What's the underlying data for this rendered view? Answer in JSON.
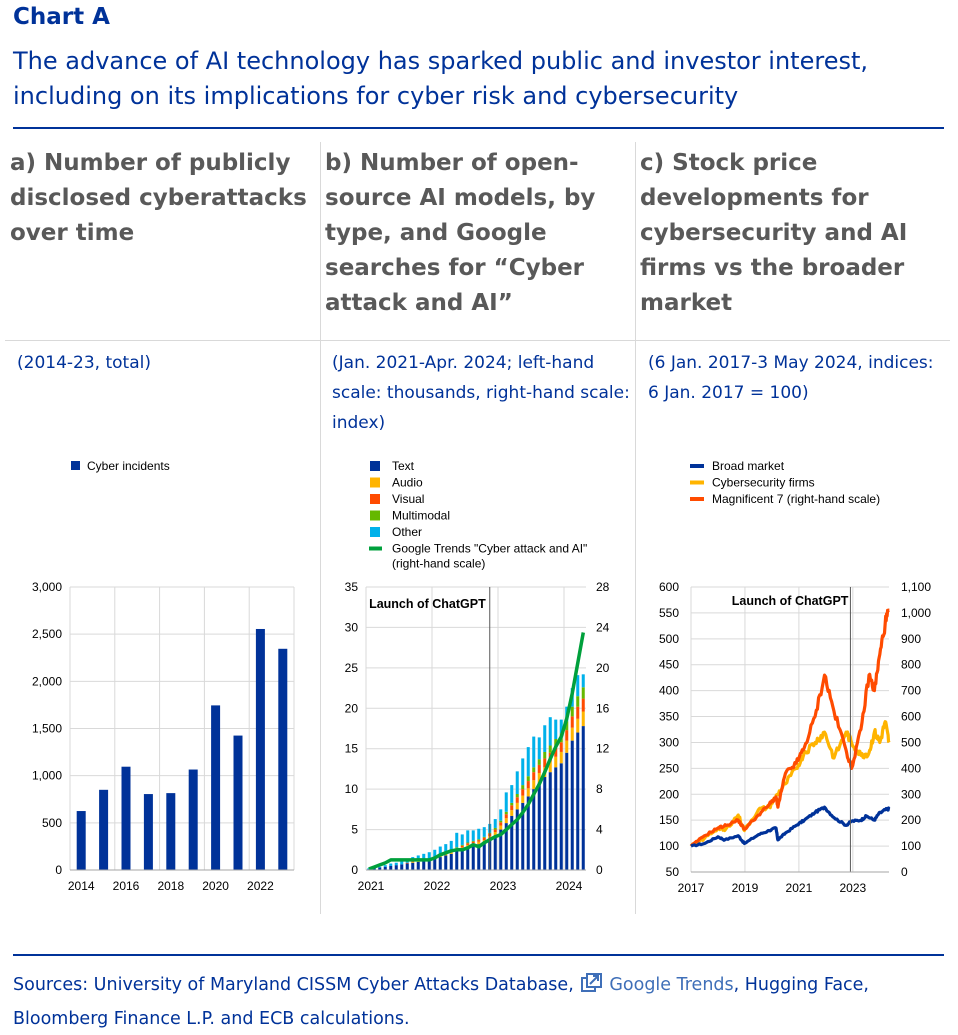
{
  "header": {
    "chart_label": "Chart A",
    "title": "The advance of AI technology has sparked public and investor interest, including on its implications for cyber risk and cybersecurity"
  },
  "panels": [
    {
      "title": "a) Number of publicly disclosed cyberattacks over time",
      "subtitle": "(2014-23, total)"
    },
    {
      "title": "b) Number of open-source AI models, by type, and Google searches for “Cyber attack and AI”",
      "subtitle": "(Jan. 2021-Apr. 2024; left-hand scale: thousands, right-hand scale: index)"
    },
    {
      "title": "c) Stock price developments for cybersecurity and AI firms vs the broader market",
      "subtitle": "(6 Jan. 2017-3 May 2024, indices: 6 Jan. 2017 = 100)"
    }
  ],
  "footer": {
    "sources_prefix": "Sources: University of Maryland CISSM Cyber Attacks Database,",
    "sources_link": "Google Trends",
    "sources_suffix": ", Hugging Face, Bloomberg Finance L.P. and ECB calculations.",
    "link_icon": "external-link-icon"
  },
  "chart_data": [
    {
      "type": "bar",
      "categories": [
        "2014",
        "2015",
        "2016",
        "2017",
        "2018",
        "2019",
        "2020",
        "2021",
        "2022",
        "2023"
      ],
      "x_tick_labels": [
        "2014",
        "2016",
        "2018",
        "2020",
        "2022"
      ],
      "series": [
        {
          "name": "Cyber incidents",
          "values": [
            625,
            850,
            1095,
            805,
            815,
            1065,
            1745,
            1425,
            2555,
            2345
          ],
          "color": "#003299"
        }
      ],
      "y_ticks": [
        "0",
        "500",
        "1,000",
        "1,500",
        "2,000",
        "2,500",
        "3,000"
      ],
      "ylim": [
        0,
        3000
      ],
      "grid": true,
      "legend_position": "top-left"
    },
    {
      "type": "bar",
      "stacked": true,
      "months": 40,
      "x_start": "2021-01",
      "x_tick_labels": [
        "2021",
        "2022",
        "2023",
        "2024"
      ],
      "left_ylim": [
        0,
        35
      ],
      "left_y_ticks": [
        "0",
        "5",
        "10",
        "15",
        "20",
        "25",
        "30",
        "35"
      ],
      "right_ylim": [
        0,
        28
      ],
      "right_y_ticks": [
        "0",
        "4",
        "8",
        "12",
        "16",
        "20",
        "24",
        "28"
      ],
      "annotation": "Launch of ChatGPT",
      "annotation_x": "2022-11",
      "legend_position": "top-left",
      "series": [
        {
          "name": "Text",
          "color": "#003299",
          "values": [
            0.1,
            0.2,
            0.3,
            0.4,
            0.5,
            0.6,
            0.7,
            0.8,
            0.9,
            1.0,
            1.1,
            1.2,
            1.4,
            1.6,
            1.8,
            2.0,
            2.3,
            2.5,
            2.8,
            3.0,
            3.2,
            3.4,
            3.8,
            4.3,
            5.0,
            5.8,
            6.7,
            7.5,
            8.3,
            9.1,
            10.0,
            10.8,
            11.5,
            12.1,
            12.7,
            13.2,
            14.5,
            16.0,
            17.0,
            17.8
          ]
        },
        {
          "name": "Audio",
          "color": "#ffb400",
          "values": [
            0,
            0,
            0,
            0,
            0,
            0,
            0,
            0,
            0.1,
            0.1,
            0.1,
            0.1,
            0.1,
            0.2,
            0.2,
            0.2,
            0.2,
            0.3,
            0.3,
            0.3,
            0.3,
            0.3,
            0.4,
            0.4,
            0.5,
            0.6,
            0.7,
            0.8,
            0.9,
            1.0,
            1.1,
            1.2,
            1.2,
            1.3,
            1.3,
            1.4,
            1.5,
            1.6,
            1.7,
            1.8
          ]
        },
        {
          "name": "Visual",
          "color": "#ff4b00",
          "values": [
            0,
            0,
            0,
            0,
            0,
            0,
            0,
            0.1,
            0.1,
            0.1,
            0.1,
            0.1,
            0.1,
            0.1,
            0.1,
            0.2,
            0.2,
            0.2,
            0.2,
            0.2,
            0.2,
            0.3,
            0.3,
            0.3,
            0.4,
            0.5,
            0.6,
            0.7,
            0.8,
            0.9,
            1.0,
            1.0,
            1.1,
            1.1,
            1.2,
            1.2,
            1.3,
            1.4,
            1.5,
            1.6
          ]
        },
        {
          "name": "Multimodal",
          "color": "#65b800",
          "values": [
            0,
            0,
            0,
            0,
            0,
            0,
            0,
            0,
            0,
            0,
            0,
            0,
            0,
            0,
            0,
            0,
            0.1,
            0.1,
            0.1,
            0.1,
            0.1,
            0.1,
            0.1,
            0.2,
            0.2,
            0.3,
            0.3,
            0.4,
            0.5,
            0.6,
            0.6,
            0.7,
            0.8,
            0.9,
            1.0,
            1.1,
            1.1,
            1.2,
            1.3,
            1.4
          ]
        },
        {
          "name": "Other",
          "color": "#00b1ea",
          "values": [
            0.1,
            0.1,
            0.1,
            0.2,
            0.3,
            0.3,
            0.4,
            0.5,
            0.5,
            0.6,
            0.7,
            0.8,
            0.9,
            1.0,
            1.1,
            1.2,
            1.8,
            1.3,
            1.5,
            1.3,
            1.3,
            1.2,
            1.1,
            1.1,
            1.4,
            2.4,
            2.2,
            2.8,
            3.3,
            3.6,
            3.8,
            2.7,
            3.3,
            3.5,
            2.4,
            1.7,
            1.8,
            2.3,
            2.6,
            1.6
          ]
        },
        {
          "name": "Google Trends \"Cyber attack and AI\" (right-hand scale)",
          "color": "#00a03c",
          "axis": "right",
          "values": [
            0.1,
            0.3,
            0.5,
            0.7,
            1.0,
            1.0,
            1.0,
            1.0,
            1.0,
            1.0,
            1.0,
            1.0,
            1.2,
            1.5,
            1.7,
            1.9,
            2.0,
            2.0,
            2.2,
            2.5,
            2.3,
            2.7,
            3.0,
            3.3,
            3.5,
            4.0,
            4.5,
            5.0,
            5.7,
            6.5,
            7.5,
            8.5,
            9.7,
            11.0,
            12.2,
            13.2,
            15.0,
            17.5,
            20.5,
            23.5
          ]
        }
      ]
    },
    {
      "type": "line",
      "x_start": 2017.0,
      "x_end": 2024.34,
      "x_tick_labels": [
        "2017",
        "2019",
        "2021",
        "2023"
      ],
      "x_ticks": [
        2017,
        2019,
        2021,
        2023
      ],
      "left_ylim": [
        50,
        600
      ],
      "left_y_ticks": [
        "50",
        "100",
        "150",
        "200",
        "250",
        "300",
        "350",
        "400",
        "450",
        "500",
        "550",
        "600"
      ],
      "right_ylim": [
        0,
        1100
      ],
      "right_y_ticks": [
        "0",
        "100",
        "200",
        "300",
        "400",
        "500",
        "600",
        "700",
        "800",
        "900",
        "1,000",
        "1,100"
      ],
      "annotation": "Launch of ChatGPT",
      "annotation_x": 2022.91,
      "legend_position": "top-left",
      "series": [
        {
          "name": "Broad market",
          "color": "#003299",
          "axis": "left",
          "x": [
            2017.0,
            2017.5,
            2018.0,
            2018.25,
            2018.75,
            2018.98,
            2019.5,
            2019.9,
            2020.15,
            2020.22,
            2020.5,
            2020.9,
            2021.2,
            2021.6,
            2021.95,
            2022.3,
            2022.75,
            2022.95,
            2023.3,
            2023.5,
            2023.8,
            2023.95,
            2024.2,
            2024.34
          ],
          "y": [
            100,
            105,
            118,
            112,
            120,
            105,
            122,
            130,
            135,
            112,
            125,
            140,
            150,
            165,
            175,
            155,
            140,
            148,
            150,
            158,
            150,
            162,
            170,
            172
          ]
        },
        {
          "name": "Cybersecurity firms",
          "color": "#ffb400",
          "axis": "left",
          "x": [
            2017.0,
            2017.5,
            2018.0,
            2018.25,
            2018.75,
            2018.98,
            2019.5,
            2019.9,
            2020.2,
            2020.5,
            2020.9,
            2021.2,
            2021.6,
            2021.95,
            2022.3,
            2022.75,
            2022.95,
            2023.3,
            2023.6,
            2023.8,
            2024.0,
            2024.2,
            2024.34
          ],
          "y": [
            100,
            115,
            135,
            130,
            160,
            130,
            170,
            175,
            200,
            220,
            250,
            280,
            300,
            320,
            270,
            320,
            300,
            275,
            280,
            320,
            300,
            340,
            300
          ]
        },
        {
          "name": "Magnificent 7 (right-hand scale)",
          "color": "#ff4b00",
          "axis": "right",
          "x": [
            2017.0,
            2017.5,
            2018.0,
            2018.3,
            2018.75,
            2018.98,
            2019.5,
            2019.9,
            2020.15,
            2020.22,
            2020.5,
            2020.9,
            2021.2,
            2021.6,
            2021.95,
            2022.3,
            2022.75,
            2022.95,
            2023.3,
            2023.6,
            2023.8,
            2024.0,
            2024.2,
            2024.34
          ],
          "y": [
            100,
            140,
            170,
            180,
            200,
            165,
            220,
            260,
            290,
            250,
            380,
            420,
            480,
            600,
            760,
            620,
            470,
            400,
            550,
            760,
            700,
            840,
            960,
            1010
          ]
        }
      ]
    }
  ]
}
